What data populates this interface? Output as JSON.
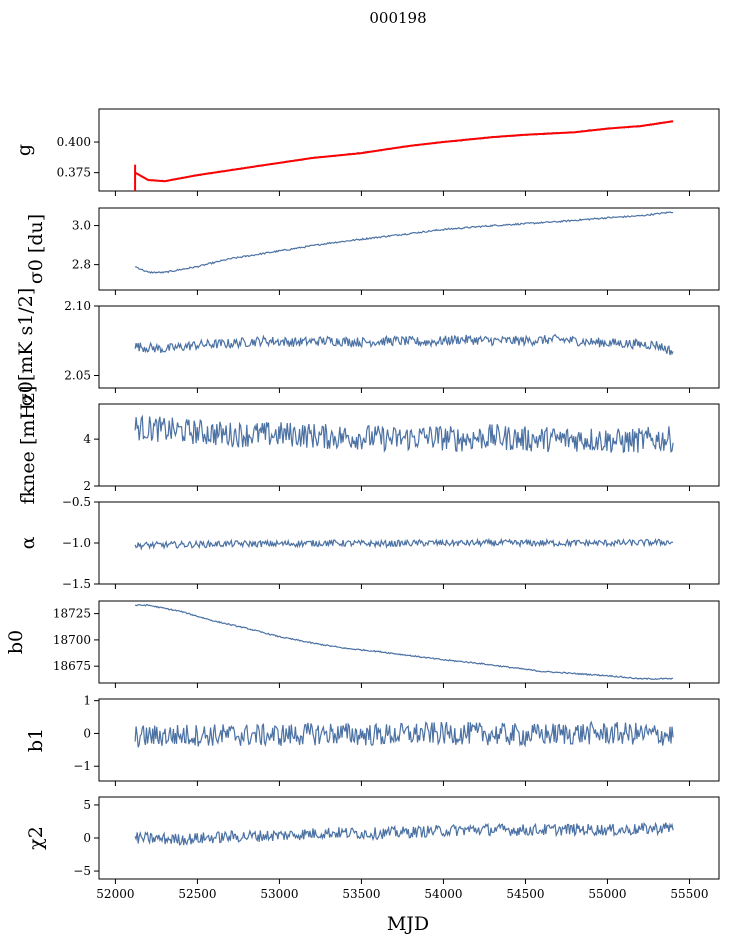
{
  "figure": {
    "title": "000198",
    "xlabel": "MJD"
  },
  "colors": {
    "series": "#4c72a4",
    "fit": "#ff0000",
    "axes": "#000000"
  },
  "chart_data": [
    {
      "type": "line",
      "ylabel": "g",
      "xlim": [
        51900,
        55680
      ],
      "ylim": [
        0.36,
        0.427
      ],
      "yticks": [
        0.375,
        0.4
      ],
      "yticklabels": [
        "0.375",
        "0.400"
      ],
      "series": [
        {
          "x": [
            52120,
            52200,
            52300,
            52500,
            52700,
            53000,
            53200,
            53500,
            53800,
            54000,
            54300,
            54500,
            54800,
            55000,
            55200,
            55400
          ],
          "y": [
            0.375,
            0.369,
            0.368,
            0.373,
            0.377,
            0.383,
            0.387,
            0.391,
            0.397,
            0.4,
            0.404,
            0.406,
            0.408,
            0.411,
            0.413,
            0.417
          ]
        }
      ],
      "fit": {
        "x": [
          52120,
          52200,
          52300,
          52500,
          52700,
          53000,
          53200,
          53500,
          53800,
          54000,
          54300,
          54500,
          54800,
          55000,
          55200,
          55400
        ],
        "y": [
          0.375,
          0.369,
          0.368,
          0.373,
          0.377,
          0.383,
          0.387,
          0.391,
          0.397,
          0.4,
          0.404,
          0.406,
          0.408,
          0.411,
          0.413,
          0.417
        ]
      }
    },
    {
      "type": "line",
      "ylabel": "σ0 [du]",
      "xlim": [
        51900,
        55680
      ],
      "ylim": [
        2.67,
        3.09
      ],
      "yticks": [
        2.8,
        3.0
      ],
      "yticklabels": [
        "2.8",
        "3.0"
      ],
      "series": [
        {
          "x": [
            52120,
            52200,
            52300,
            52500,
            52700,
            53000,
            53300,
            53600,
            54000,
            54300,
            54700,
            55000,
            55200,
            55400
          ],
          "y": [
            2.79,
            2.76,
            2.76,
            2.79,
            2.83,
            2.87,
            2.91,
            2.94,
            2.98,
            3.0,
            3.02,
            3.04,
            3.05,
            3.07
          ]
        }
      ]
    },
    {
      "type": "line",
      "ylabel": "σ0[mK s1/2]",
      "xlim": [
        51900,
        55680
      ],
      "ylim": [
        2.041,
        2.1
      ],
      "yticks": [
        2.05,
        2.1
      ],
      "yticklabels": [
        "2.05",
        "2.10"
      ],
      "series": [
        {
          "x": [
            52120,
            52300,
            52500,
            52700,
            52900,
            53100,
            53300,
            53500,
            53700,
            53900,
            54100,
            54300,
            54500,
            54700,
            54900,
            55100,
            55300,
            55400
          ],
          "y": [
            2.071,
            2.069,
            2.072,
            2.073,
            2.075,
            2.074,
            2.075,
            2.074,
            2.075,
            2.074,
            2.076,
            2.075,
            2.075,
            2.076,
            2.074,
            2.073,
            2.072,
            2.067
          ]
        }
      ]
    },
    {
      "type": "line",
      "ylabel": "fknee [mHz]",
      "xlim": [
        51900,
        55680
      ],
      "ylim": [
        2,
        5.5
      ],
      "yticks": [
        2,
        4
      ],
      "yticklabels": [
        "2",
        "4"
      ],
      "series": [
        {
          "x": [
            52120,
            52300,
            52500,
            52700,
            52900,
            53100,
            53300,
            53500,
            53700,
            53900,
            54100,
            54300,
            54500,
            54700,
            54900,
            55100,
            55300,
            55400
          ],
          "y": [
            4.5,
            4.4,
            4.3,
            4.2,
            4.2,
            4.2,
            4.1,
            4.1,
            4.0,
            4.1,
            4.0,
            4.1,
            4.0,
            4.0,
            4.0,
            3.9,
            4.0,
            4.0
          ]
        }
      ]
    },
    {
      "type": "line",
      "ylabel": "α",
      "xlim": [
        51900,
        55680
      ],
      "ylim": [
        -1.5,
        -0.5
      ],
      "yticks": [
        -1.5,
        -1.0,
        -0.5
      ],
      "yticklabels": [
        "−1.5",
        "−1.0",
        "−0.5"
      ],
      "series": [
        {
          "x": [
            52120,
            52400,
            52700,
            53000,
            53300,
            53600,
            53900,
            54200,
            54500,
            54800,
            55100,
            55400
          ],
          "y": [
            -1.03,
            -1.02,
            -1.01,
            -1.01,
            -1.0,
            -1.01,
            -1.0,
            -1.0,
            -1.0,
            -1.0,
            -1.0,
            -0.99
          ]
        }
      ]
    },
    {
      "type": "line",
      "ylabel": "b0",
      "xlim": [
        51900,
        55680
      ],
      "ylim": [
        18659,
        18737
      ],
      "yticks": [
        18675,
        18700,
        18725
      ],
      "yticklabels": [
        "18675",
        "18700",
        "18725"
      ],
      "series": [
        {
          "x": [
            52120,
            52200,
            52400,
            52600,
            52800,
            53000,
            53200,
            53400,
            53600,
            53800,
            54000,
            54200,
            54400,
            54600,
            54800,
            55000,
            55200,
            55400
          ],
          "y": [
            18733,
            18733,
            18727,
            18718,
            18711,
            18703,
            18697,
            18692,
            18689,
            18685,
            18681,
            18678,
            18674,
            18670,
            18668,
            18666,
            18663,
            18663
          ]
        }
      ]
    },
    {
      "type": "line",
      "ylabel": "b1",
      "xlim": [
        51900,
        55680
      ],
      "ylim": [
        -1.45,
        1.05
      ],
      "yticks": [
        -1,
        0,
        1
      ],
      "yticklabels": [
        "−1",
        "0",
        "1"
      ],
      "series": [
        {
          "x": [
            52120,
            52400,
            52700,
            53000,
            53300,
            53600,
            53900,
            54200,
            54500,
            54800,
            55100,
            55400
          ],
          "y": [
            -0.1,
            -0.05,
            -0.05,
            -0.05,
            0.0,
            -0.05,
            0.0,
            0.0,
            -0.05,
            0.0,
            0.0,
            -0.05
          ]
        }
      ]
    },
    {
      "type": "line",
      "ylabel": "χ2",
      "xlim": [
        51900,
        55680
      ],
      "ylim": [
        -6.2,
        6.2
      ],
      "yticks": [
        -5,
        0,
        5
      ],
      "yticklabels": [
        "−5",
        "0",
        "5"
      ],
      "series": [
        {
          "x": [
            52120,
            52400,
            52700,
            53000,
            53300,
            53600,
            53900,
            54200,
            54500,
            54800,
            55100,
            55400
          ],
          "y": [
            0.0,
            -0.2,
            0.2,
            0.4,
            0.8,
            0.7,
            1.0,
            1.3,
            1.2,
            1.3,
            1.2,
            1.6
          ]
        }
      ]
    }
  ],
  "xaxis": {
    "ticks": [
      52000,
      52500,
      53000,
      53500,
      54000,
      54500,
      55000,
      55500
    ],
    "ticklabels": [
      "52000",
      "52500",
      "53000",
      "53500",
      "54000",
      "54500",
      "55000",
      "55500"
    ]
  }
}
